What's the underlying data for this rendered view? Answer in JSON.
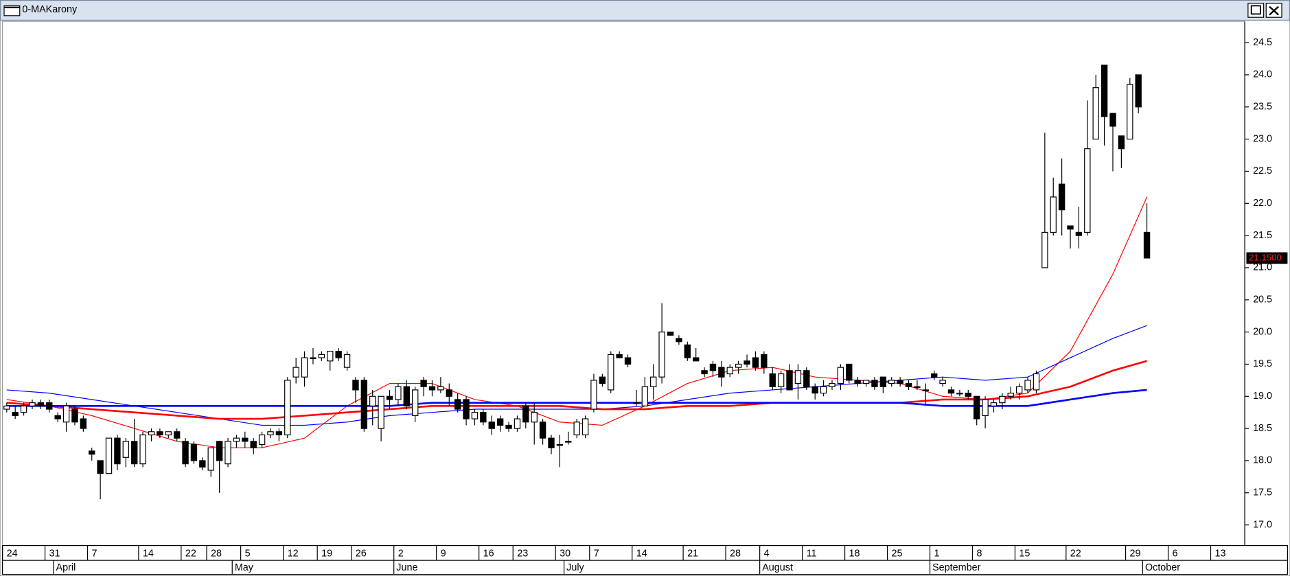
{
  "window": {
    "title": "0-MAKarony"
  },
  "chart_data": {
    "type": "candlestick",
    "categories": [
      "24",
      null,
      null,
      null,
      null,
      "31",
      null,
      null,
      null,
      null,
      "7",
      null,
      null,
      null,
      null,
      null,
      "14",
      null,
      null,
      null,
      null,
      "22",
      null,
      null,
      "28",
      null,
      null,
      null,
      "5",
      null,
      null,
      null,
      null,
      "12",
      null,
      null,
      null,
      "19",
      null,
      null,
      null,
      "26",
      null,
      null,
      null,
      null,
      "2",
      null,
      null,
      null,
      null,
      "9",
      null,
      null,
      null,
      null,
      "16",
      null,
      null,
      null,
      "23",
      null,
      null,
      null,
      null,
      "30",
      null,
      null,
      null,
      "7",
      null,
      null,
      null,
      null,
      "14",
      null,
      null,
      null,
      null,
      null,
      "21",
      null,
      null,
      null,
      null,
      "28",
      null,
      null,
      null,
      "4",
      null,
      null,
      null,
      null,
      "11",
      null,
      null,
      null,
      null,
      "18",
      null,
      null,
      null,
      null,
      "25",
      null,
      null,
      null,
      null,
      "1",
      null,
      null,
      null,
      null,
      "8",
      null,
      null,
      null,
      null,
      "15",
      null,
      null,
      null,
      null,
      null,
      "22",
      null,
      null,
      null,
      null,
      null,
      null,
      "29",
      null,
      null,
      null,
      null,
      "6",
      null,
      null,
      null,
      null,
      "13",
      null,
      null
    ],
    "month_categories": [
      null,
      null,
      null,
      null,
      null,
      null,
      "April",
      null,
      null,
      null,
      null,
      null,
      null,
      null,
      null,
      null,
      null,
      null,
      null,
      null,
      null,
      null,
      null,
      null,
      null,
      null,
      null,
      "May",
      null,
      null,
      null,
      null,
      null,
      null,
      null,
      null,
      null,
      null,
      null,
      null,
      null,
      null,
      null,
      null,
      null,
      null,
      "June",
      null,
      null,
      null,
      null,
      null,
      null,
      null,
      null,
      null,
      null,
      null,
      null,
      null,
      null,
      null,
      null,
      null,
      null,
      null,
      "July",
      null,
      null,
      null,
      null,
      null,
      null,
      null,
      null,
      null,
      null,
      null,
      null,
      null,
      null,
      null,
      null,
      null,
      null,
      null,
      null,
      null,
      null,
      "August",
      null,
      null,
      null,
      null,
      null,
      null,
      null,
      null,
      null,
      null,
      null,
      null,
      null,
      null,
      null,
      null,
      null,
      null,
      null,
      "September",
      null,
      null,
      null,
      null,
      null,
      null,
      null,
      null,
      null,
      null,
      null,
      null,
      null,
      null,
      null,
      null,
      null,
      null,
      null,
      null,
      null,
      null,
      null,
      null,
      "October",
      null,
      null,
      null,
      null,
      null,
      null,
      null,
      null,
      null,
      null
    ],
    "open": [
      18.8,
      18.75,
      18.75,
      18.85,
      18.9,
      18.9,
      18.7,
      18.6,
      18.8,
      18.65,
      18.15,
      18.0,
      17.8,
      18.35,
      18.05,
      18.3,
      17.95,
      18.4,
      18.45,
      18.4,
      18.45,
      18.3,
      18.25,
      18.0,
      17.85,
      18.3,
      17.95,
      18.3,
      18.35,
      18.3,
      18.25,
      18.4,
      18.45,
      18.4,
      19.3,
      19.3,
      19.6,
      19.6,
      19.55,
      19.7,
      19.45,
      19.25,
      19.25,
      18.85,
      18.5,
      19.0,
      18.95,
      19.15,
      18.7,
      19.25,
      19.15,
      19.1,
      19.1,
      18.95,
      18.95,
      18.65,
      18.75,
      18.6,
      18.65,
      18.55,
      18.5,
      18.85,
      18.6,
      18.6,
      18.35,
      18.25,
      18.3,
      18.4,
      18.4,
      18.8,
      19.3,
      19.1,
      19.65,
      19.6,
      18.9,
      18.85,
      19.15,
      19.3,
      20.0,
      19.9,
      19.8,
      19.6,
      19.4,
      19.5,
      19.45,
      19.35,
      19.45,
      19.55,
      19.6,
      19.65,
      19.35,
      19.15,
      19.4,
      19.2,
      19.4,
      19.15,
      19.05,
      19.15,
      19.2,
      19.5,
      19.25,
      19.2,
      19.25,
      19.3,
      19.2,
      19.25,
      19.2,
      19.15,
      19.1,
      19.35,
      19.2,
      19.1,
      19.05,
      19.05,
      19.0,
      18.7,
      18.85,
      18.9,
      19.0,
      19.05,
      19.1,
      19.1,
      21.0,
      21.55,
      22.3,
      21.65,
      21.55,
      21.55,
      23.0,
      24.15,
      23.4,
      23.05,
      23.0,
      24.0,
      21.55,
      null,
      null,
      null,
      null,
      null,
      null,
      null,
      null,
      null,
      null
    ],
    "high": [
      18.9,
      18.85,
      18.9,
      18.95,
      18.95,
      18.95,
      18.75,
      18.9,
      18.85,
      18.7,
      18.2,
      18.0,
      18.35,
      18.4,
      18.35,
      18.65,
      18.45,
      18.5,
      18.5,
      18.45,
      18.5,
      18.35,
      18.3,
      18.05,
      18.2,
      18.3,
      18.35,
      18.4,
      18.45,
      18.35,
      18.45,
      18.5,
      18.5,
      19.3,
      19.6,
      19.7,
      19.75,
      19.7,
      19.7,
      19.75,
      19.7,
      19.3,
      19.3,
      19.1,
      19.0,
      19.1,
      19.2,
      19.25,
      19.15,
      19.3,
      19.25,
      19.3,
      19.2,
      19.05,
      19.0,
      18.8,
      18.8,
      18.7,
      18.7,
      18.6,
      18.7,
      18.9,
      18.9,
      18.65,
      18.4,
      18.4,
      18.45,
      18.65,
      18.7,
      19.35,
      19.35,
      19.7,
      19.7,
      19.65,
      19.1,
      19.3,
      19.5,
      20.45,
      20.0,
      19.95,
      19.85,
      19.75,
      19.45,
      19.55,
      19.55,
      19.5,
      19.55,
      19.65,
      19.7,
      19.7,
      19.45,
      19.4,
      19.5,
      19.5,
      19.45,
      19.2,
      19.25,
      19.25,
      19.5,
      19.5,
      19.3,
      19.25,
      19.3,
      19.3,
      19.3,
      19.3,
      19.25,
      19.25,
      19.2,
      19.4,
      19.3,
      19.15,
      19.1,
      19.1,
      19.0,
      19.0,
      18.95,
      19.05,
      19.15,
      19.2,
      19.3,
      19.4,
      23.1,
      22.4,
      22.7,
      21.65,
      21.95,
      23.6,
      24.0,
      24.15,
      23.4,
      23.05,
      23.95,
      24.0,
      22.0,
      null,
      null,
      null,
      null,
      null,
      null,
      null,
      null,
      null,
      null
    ],
    "low": [
      18.75,
      18.65,
      18.7,
      18.8,
      18.8,
      18.75,
      18.6,
      18.45,
      18.55,
      18.45,
      18.0,
      17.4,
      17.8,
      17.85,
      17.9,
      17.9,
      17.9,
      18.3,
      18.35,
      18.35,
      18.3,
      17.9,
      17.95,
      17.85,
      17.75,
      17.5,
      17.9,
      18.2,
      18.2,
      18.1,
      18.2,
      18.35,
      18.3,
      18.35,
      19.2,
      19.15,
      19.5,
      19.55,
      19.4,
      19.55,
      19.4,
      18.9,
      18.45,
      18.55,
      18.3,
      18.8,
      18.85,
      18.8,
      18.6,
      19.0,
      19.0,
      19.05,
      18.85,
      18.75,
      18.55,
      18.55,
      18.55,
      18.4,
      18.45,
      18.45,
      18.45,
      18.5,
      18.25,
      18.25,
      18.1,
      17.9,
      18.25,
      18.35,
      18.35,
      18.75,
      19.15,
      19.05,
      19.6,
      19.45,
      18.85,
      18.85,
      18.95,
      19.2,
      19.95,
      19.8,
      19.55,
      19.55,
      19.3,
      19.3,
      19.15,
      19.3,
      19.35,
      19.45,
      19.4,
      19.35,
      19.1,
      19.05,
      19.1,
      18.95,
      19.1,
      18.95,
      19.0,
      19.1,
      19.1,
      19.2,
      19.15,
      19.15,
      19.1,
      19.05,
      19.15,
      19.15,
      19.1,
      19.1,
      18.85,
      19.25,
      19.15,
      19.0,
      19.0,
      18.95,
      18.55,
      18.5,
      18.75,
      18.8,
      18.95,
      18.95,
      19.05,
      19.05,
      21.0,
      21.5,
      21.5,
      21.3,
      21.3,
      21.5,
      23.0,
      22.9,
      22.5,
      22.55,
      23.0,
      23.4,
      21.15,
      null,
      null,
      null,
      null,
      null,
      null,
      null,
      null,
      null,
      null
    ],
    "close": [
      18.85,
      18.7,
      18.85,
      18.9,
      18.85,
      18.8,
      18.65,
      18.85,
      18.6,
      18.5,
      18.1,
      17.8,
      18.35,
      17.95,
      18.3,
      17.95,
      18.4,
      18.45,
      18.4,
      18.45,
      18.35,
      17.95,
      18.0,
      17.9,
      18.2,
      18.0,
      18.3,
      18.35,
      18.3,
      18.2,
      18.4,
      18.45,
      18.4,
      19.25,
      19.45,
      19.6,
      19.6,
      19.65,
      19.7,
      19.6,
      19.65,
      19.1,
      18.5,
      19.0,
      19.0,
      18.95,
      19.15,
      18.85,
      19.1,
      19.15,
      19.1,
      19.15,
      19.0,
      18.8,
      18.65,
      18.75,
      18.6,
      18.5,
      18.55,
      18.5,
      18.65,
      18.6,
      18.75,
      18.35,
      18.2,
      18.25,
      18.3,
      18.6,
      18.65,
      19.25,
      19.2,
      19.65,
      19.6,
      19.5,
      18.9,
      19.15,
      19.3,
      20.0,
      19.95,
      19.85,
      19.6,
      19.55,
      19.35,
      19.4,
      19.3,
      19.45,
      19.5,
      19.5,
      19.45,
      19.45,
      19.15,
      19.35,
      19.1,
      19.4,
      19.15,
      19.05,
      19.15,
      19.2,
      19.45,
      19.25,
      19.2,
      19.25,
      19.15,
      19.15,
      19.25,
      19.2,
      19.15,
      19.15,
      19.1,
      19.3,
      19.25,
      19.05,
      19.05,
      19.0,
      18.65,
      18.95,
      18.9,
      19.0,
      19.05,
      19.15,
      19.25,
      19.35,
      21.55,
      22.1,
      21.9,
      21.6,
      21.5,
      22.85,
      23.8,
      23.35,
      23.2,
      22.85,
      23.85,
      23.5,
      21.15,
      null,
      null,
      null,
      null,
      null,
      null,
      null,
      null,
      null,
      null
    ],
    "up_color": "#ffffff",
    "down_color": "#000000",
    "ylim": [
      16.68,
      24.83
    ],
    "yticks": [
      {
        "value": 17,
        "label": "17.0"
      },
      17.5,
      {
        "value": 18,
        "label": "18.0"
      },
      18.5,
      {
        "value": 19,
        "label": "19.0"
      },
      19.5,
      {
        "value": 20,
        "label": "20.0"
      },
      20.5,
      {
        "value": 21,
        "label": "21.0"
      },
      21.5,
      {
        "value": 22,
        "label": "22.0"
      },
      22.5,
      {
        "value": 23,
        "label": "23.0"
      },
      23.5,
      {
        "value": 24,
        "label": "24.0"
      },
      24.5
    ],
    "lines": {
      "x": [
        0,
        5,
        10,
        15,
        20,
        25,
        30,
        35,
        40,
        45,
        50,
        55,
        60,
        65,
        70,
        75,
        80,
        85,
        90,
        95,
        100,
        105,
        110,
        115,
        120,
        125,
        130,
        134
      ],
      "series": [
        {
          "color": "#ff0000",
          "values": [
            18.95,
            18.85,
            18.7,
            18.5,
            18.3,
            18.2,
            18.2,
            18.35,
            18.85,
            19.2,
            19.2,
            18.95,
            18.85,
            18.6,
            18.55,
            18.85,
            19.2,
            19.4,
            19.45,
            19.3,
            19.25,
            19.2,
            19.0,
            18.95,
            19.05,
            19.7,
            20.9,
            22.1
          ]
        },
        {
          "color": "#0000ff",
          "values": [
            19.1,
            19.05,
            18.95,
            18.85,
            18.75,
            18.65,
            18.55,
            18.55,
            18.6,
            18.7,
            18.75,
            18.8,
            18.8,
            18.8,
            18.8,
            18.85,
            18.95,
            19.05,
            19.1,
            19.15,
            19.2,
            19.25,
            19.3,
            19.25,
            19.3,
            19.6,
            19.9,
            20.1
          ]
        },
        {
          "color": "#ff0000",
          "values": [
            18.9,
            18.85,
            18.8,
            18.75,
            18.7,
            18.65,
            18.65,
            18.7,
            18.75,
            18.8,
            18.85,
            18.85,
            18.85,
            18.85,
            18.8,
            18.8,
            18.85,
            18.85,
            18.9,
            18.9,
            18.9,
            18.9,
            18.95,
            18.95,
            19.0,
            19.15,
            19.4,
            19.55
          ]
        },
        {
          "color": "#0000ff",
          "values": [
            18.85,
            18.85,
            18.85,
            18.85,
            18.85,
            18.85,
            18.85,
            18.85,
            18.85,
            18.85,
            18.9,
            18.9,
            18.9,
            18.9,
            18.9,
            18.9,
            18.9,
            18.9,
            18.9,
            18.9,
            18.9,
            18.9,
            18.85,
            18.85,
            18.85,
            18.95,
            19.05,
            19.1
          ]
        }
      ]
    },
    "last_price": {
      "value": 21.15,
      "label": "21.1500"
    }
  }
}
